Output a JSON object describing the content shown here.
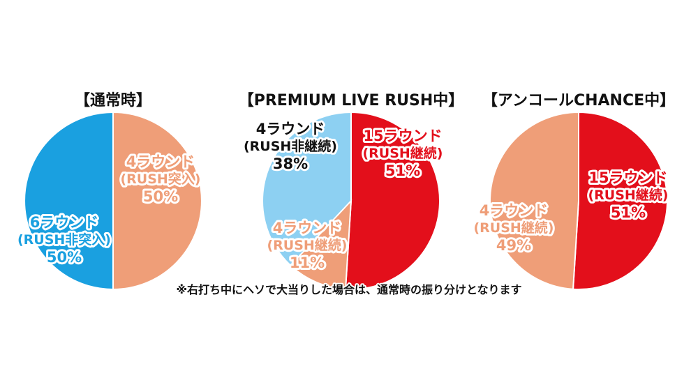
{
  "note": "※右打ち中にヘソで大当りした場合は、通常時の振り分けとなります",
  "colors": {
    "blue": "#1aa0e0",
    "salmon": "#ef9e78",
    "light_blue": "#8dd0f2",
    "red": "#e30f1b"
  },
  "chart_data": [
    {
      "type": "pie",
      "title": "【通常時】",
      "start": "12 o'clock",
      "direction": "clockwise",
      "slices": [
        {
          "lines": [
            "4ラウンド",
            "(RUSH突入)",
            "50%"
          ],
          "value": 50,
          "color": "#ef9e78"
        },
        {
          "lines": [
            "6ラウンド",
            "(RUSH非突入)",
            "50%"
          ],
          "value": 50,
          "color": "#1aa0e0"
        }
      ]
    },
    {
      "type": "pie",
      "title": "【PREMIUM LIVE RUSH中】",
      "start": "12 o'clock",
      "direction": "clockwise",
      "slices": [
        {
          "lines": [
            "15ラウンド",
            "(RUSH継続)",
            "51%"
          ],
          "value": 51,
          "color": "#e30f1b"
        },
        {
          "lines": [
            "4ラウンド",
            "(RUSH継続)",
            "11%"
          ],
          "value": 11,
          "color": "#ef9e78"
        },
        {
          "lines": [
            "4ラウンド",
            "(RUSH非継続)",
            "38%"
          ],
          "value": 38,
          "color": "#8dd0f2"
        }
      ]
    },
    {
      "type": "pie",
      "title": "【アンコールCHANCE中】",
      "start": "12 o'clock",
      "direction": "clockwise",
      "slices": [
        {
          "lines": [
            "15ラウンド",
            "(RUSH継続)",
            "51%"
          ],
          "value": 51,
          "color": "#e30f1b"
        },
        {
          "lines": [
            "4ラウンド",
            "(RUSH継続)",
            "49%"
          ],
          "value": 49,
          "color": "#ef9e78"
        }
      ]
    }
  ]
}
